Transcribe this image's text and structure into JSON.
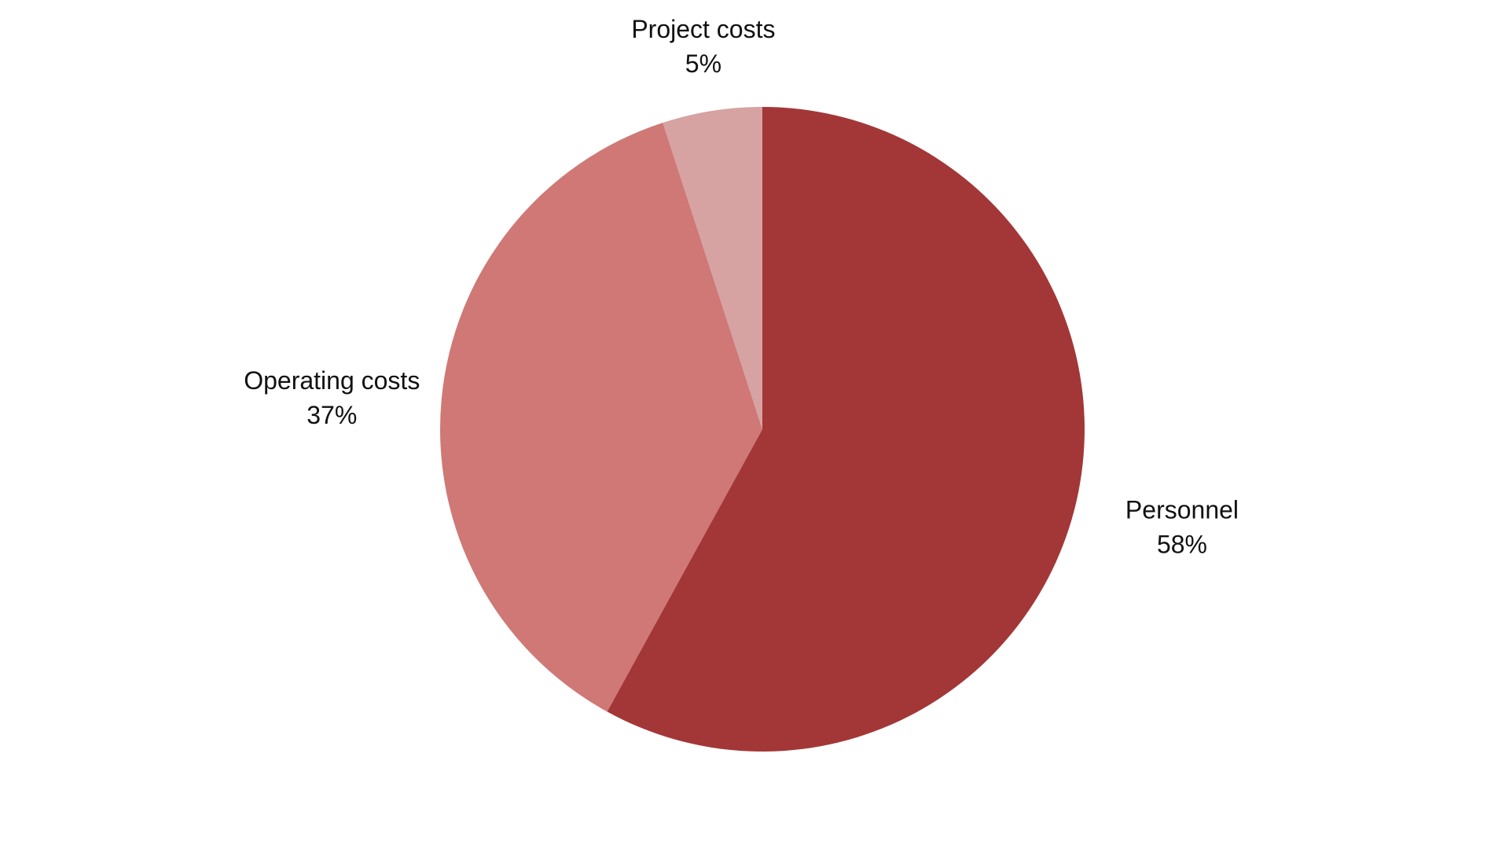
{
  "chart_data": {
    "type": "pie",
    "title": "",
    "slices": [
      {
        "label": "Personnel",
        "value": 58,
        "value_label": "58%",
        "color": "#a33737"
      },
      {
        "label": "Operating costs",
        "value": 37,
        "value_label": "37%",
        "color": "#cf7876"
      },
      {
        "label": "Project costs",
        "value": 5,
        "value_label": "5%",
        "color": "#d6a2a2"
      }
    ],
    "start_angle": "12 o'clock",
    "direction": "clockwise",
    "legend": "none",
    "labels": "outside"
  }
}
